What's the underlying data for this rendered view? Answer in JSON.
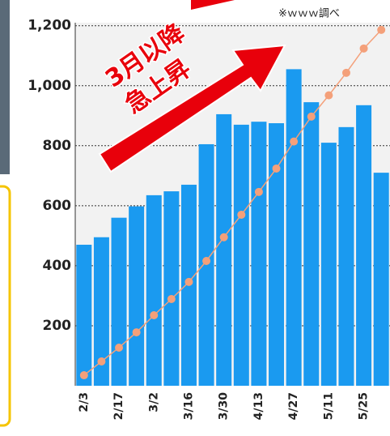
{
  "chart_data": {
    "type": "bar",
    "categories": [
      "2/3",
      null,
      "2/17",
      null,
      "3/2",
      null,
      "3/16",
      null,
      "3/30",
      null,
      "4/13",
      null,
      "4/27",
      null,
      "5/11",
      null,
      "5/25",
      null
    ],
    "series": [
      {
        "color": "#1a9af0",
        "values": [
          470,
          495,
          560,
          598,
          635,
          648,
          670,
          805,
          905,
          870,
          880,
          875,
          1055,
          945,
          810,
          862,
          935,
          710
        ]
      },
      {
        "type": "line",
        "color": "#f4a07a",
        "values": [
          35,
          81,
          127,
          178,
          235,
          289,
          346,
          416,
          495,
          570,
          646,
          724,
          814,
          897,
          968,
          1043,
          1124,
          1186
        ]
      }
    ],
    "ylim": [
      0,
      1210
    ],
    "yticks": [
      200,
      400,
      600,
      800,
      {
        "value": 1000,
        "label": "1,000"
      },
      {
        "value": 1200,
        "label": "1,200"
      }
    ],
    "grid": true,
    "annotations": [
      "3月以降",
      "急上昇"
    ],
    "note": "※ｗｗｗ調べ"
  }
}
